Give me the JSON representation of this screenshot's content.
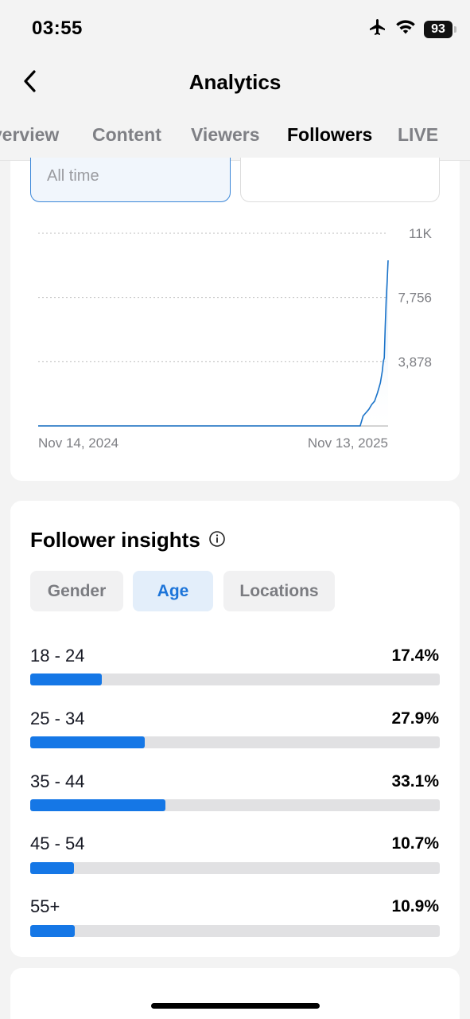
{
  "status_bar": {
    "time": "03:55",
    "battery": "93",
    "icons": [
      "airplane-icon",
      "wifi-icon",
      "battery-icon"
    ]
  },
  "header": {
    "title": "Analytics",
    "back_icon": "chevron-left-icon"
  },
  "tabs": [
    {
      "label": "Overview",
      "active": false
    },
    {
      "label": "Content",
      "active": false
    },
    {
      "label": "Viewers",
      "active": false
    },
    {
      "label": "Followers",
      "active": true
    },
    {
      "label": "LIVE",
      "active": false
    }
  ],
  "filters": {
    "period": "All time",
    "secondary": ""
  },
  "chart_data": {
    "type": "area",
    "title": "",
    "xlabel": "",
    "ylabel": "",
    "x_tick_labels": [
      "Nov 14, 2024",
      "Nov 13, 2025"
    ],
    "y_tick_labels": [
      "11K",
      "7,756",
      "3,878"
    ],
    "ylim": [
      0,
      11634
    ],
    "grid": true,
    "series": [
      {
        "x": [
          "Nov 14, 2024",
          "Oct 15, 2025",
          "Oct 18, 2025",
          "Oct 21, 2025",
          "Oct 24, 2025",
          "Oct 27, 2025",
          "Oct 30, 2025",
          "Nov 2, 2025",
          "Nov 5, 2025",
          "Nov 7, 2025",
          "Nov 8, 2025",
          "Nov 9, 2025",
          "Nov 10, 2025",
          "Nov 11, 2025",
          "Nov 12, 2025",
          "Nov 13, 2025"
        ],
        "y": [
          0,
          0,
          600,
          800,
          1000,
          1300,
          1500,
          2000,
          2600,
          3300,
          3900,
          4100,
          6000,
          7600,
          8700,
          10000
        ]
      }
    ],
    "colors": {
      "line": "#1a73c9",
      "fill_top": "#dfeaf8"
    }
  },
  "insights": {
    "title": "Follower insights",
    "info_icon": "info-circle-icon",
    "chips": [
      {
        "label": "Gender",
        "active": false
      },
      {
        "label": "Age",
        "active": true
      },
      {
        "label": "Locations",
        "active": false
      }
    ],
    "rows": [
      {
        "label": "18 - 24",
        "value": "17.4%",
        "fraction": 0.174
      },
      {
        "label": "25 - 34",
        "value": "27.9%",
        "fraction": 0.279
      },
      {
        "label": "35 - 44",
        "value": "33.1%",
        "fraction": 0.331
      },
      {
        "label": "45 - 54",
        "value": "10.7%",
        "fraction": 0.107
      },
      {
        "label": "55+",
        "value": "10.9%",
        "fraction": 0.109
      }
    ]
  },
  "colors": {
    "accent": "#1577e6",
    "active_chip_bg": "#e3eefa",
    "track": "#e1e1e3"
  }
}
